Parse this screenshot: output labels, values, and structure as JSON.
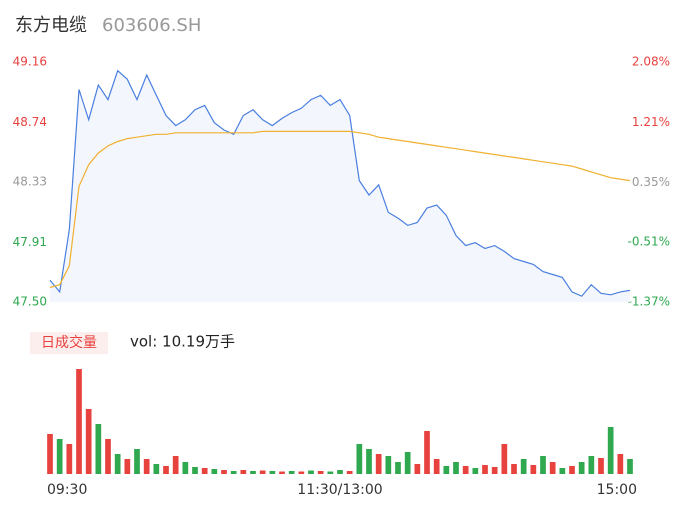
{
  "header": {
    "title": "东方电缆",
    "code": "603606.SH"
  },
  "chart_data": {
    "type": "line",
    "xlim": [
      0,
      240
    ],
    "xticks": [
      {
        "value": 0,
        "label": "09:30"
      },
      {
        "value": 120,
        "label": "11:30/13:00"
      },
      {
        "value": 240,
        "label": "15:00"
      }
    ],
    "ylim": [
      47.5,
      49.16
    ],
    "yticks": [
      {
        "value": 47.5,
        "label": "47.50"
      },
      47.91,
      48.33,
      48.74,
      49.16
    ],
    "ytick_colors": [
      "#2fa84f",
      "#2fa84f",
      "#999999",
      "#e8423f",
      "#e8423f"
    ],
    "y2lim": [
      -1.37,
      2.08
    ],
    "y2ticks": [
      {
        "value": -1.37,
        "label": "-1.37%"
      },
      {
        "value": -0.51,
        "label": "-0.51%"
      },
      {
        "value": 0.35,
        "label": "0.35%"
      },
      {
        "value": 1.21,
        "label": "1.21%"
      },
      {
        "value": 2.08,
        "label": "2.08%"
      }
    ],
    "y2tick_colors": [
      "#2fa84f",
      "#2fa84f",
      "#999999",
      "#e8423f",
      "#e8423f"
    ],
    "series": [
      {
        "name": "price",
        "color": "#4a7fe0",
        "fill": "#f3f6fc",
        "values": [
          47.65,
          47.57,
          48.0,
          48.97,
          48.76,
          49.0,
          48.9,
          49.1,
          49.04,
          48.9,
          49.07,
          48.93,
          48.79,
          48.72,
          48.76,
          48.83,
          48.86,
          48.74,
          48.69,
          48.66,
          48.79,
          48.83,
          48.76,
          48.72,
          48.77,
          48.81,
          48.84,
          48.9,
          48.93,
          48.86,
          48.9,
          48.79,
          48.34,
          48.24,
          48.31,
          48.12,
          48.08,
          48.03,
          48.05,
          48.15,
          48.17,
          48.1,
          47.96,
          47.89,
          47.91,
          47.87,
          47.89,
          47.85,
          47.8,
          47.78,
          47.76,
          47.71,
          47.69,
          47.67,
          47.57,
          47.54,
          47.62,
          47.56,
          47.55,
          47.57,
          47.58
        ]
      },
      {
        "name": "average",
        "color": "#f0b030",
        "values": [
          47.6,
          47.62,
          47.75,
          48.3,
          48.45,
          48.53,
          48.58,
          48.61,
          48.63,
          48.64,
          48.65,
          48.66,
          48.66,
          48.67,
          48.67,
          48.67,
          48.67,
          48.67,
          48.67,
          48.67,
          48.67,
          48.67,
          48.68,
          48.68,
          48.68,
          48.68,
          48.68,
          48.68,
          48.68,
          48.68,
          48.68,
          48.68,
          48.67,
          48.66,
          48.64,
          48.63,
          48.62,
          48.61,
          48.6,
          48.59,
          48.58,
          48.57,
          48.56,
          48.55,
          48.54,
          48.53,
          48.52,
          48.51,
          48.5,
          48.49,
          48.48,
          48.47,
          48.46,
          48.45,
          48.44,
          48.42,
          48.4,
          48.38,
          48.36,
          48.35,
          48.34
        ]
      }
    ],
    "volume": {
      "badge": "日成交量",
      "label": "vol: 10.19万手",
      "ylim": [
        0,
        11000
      ],
      "values": [
        4000,
        3500,
        3000,
        10500,
        6500,
        5000,
        3500,
        2000,
        1500,
        2500,
        1500,
        1000,
        800,
        1800,
        1200,
        700,
        600,
        500,
        400,
        300,
        400,
        300,
        350,
        300,
        250,
        300,
        250,
        350,
        300,
        250,
        400,
        300,
        3000,
        2500,
        2000,
        1800,
        1200,
        2200,
        1000,
        4300,
        1500,
        800,
        1200,
        800,
        600,
        900,
        700,
        3000,
        1000,
        1500,
        900,
        1800,
        1200,
        600,
        800,
        1200,
        1800,
        1600,
        4700,
        2000,
        1500
      ],
      "colors": [
        "#e8423f",
        "#2fa84f",
        "#e8423f",
        "#e8423f",
        "#e8423f",
        "#2fa84f",
        "#e8423f",
        "#2fa84f",
        "#e8423f",
        "#2fa84f",
        "#e8423f",
        "#2fa84f",
        "#e8423f",
        "#e8423f",
        "#2fa84f",
        "#2fa84f",
        "#e8423f",
        "#2fa84f",
        "#e8423f",
        "#2fa84f",
        "#e8423f",
        "#2fa84f",
        "#e8423f",
        "#2fa84f",
        "#e8423f",
        "#2fa84f",
        "#e8423f",
        "#2fa84f",
        "#e8423f",
        "#2fa84f",
        "#2fa84f",
        "#e8423f",
        "#2fa84f",
        "#2fa84f",
        "#e8423f",
        "#2fa84f",
        "#2fa84f",
        "#2fa84f",
        "#e8423f",
        "#e8423f",
        "#e8423f",
        "#2fa84f",
        "#2fa84f",
        "#e8423f",
        "#2fa84f",
        "#e8423f",
        "#e8423f",
        "#e8423f",
        "#e8423f",
        "#2fa84f",
        "#e8423f",
        "#2fa84f",
        "#e8423f",
        "#2fa84f",
        "#e8423f",
        "#2fa84f",
        "#2fa84f",
        "#e8423f",
        "#2fa84f",
        "#e8423f",
        "#2fa84f"
      ]
    }
  }
}
